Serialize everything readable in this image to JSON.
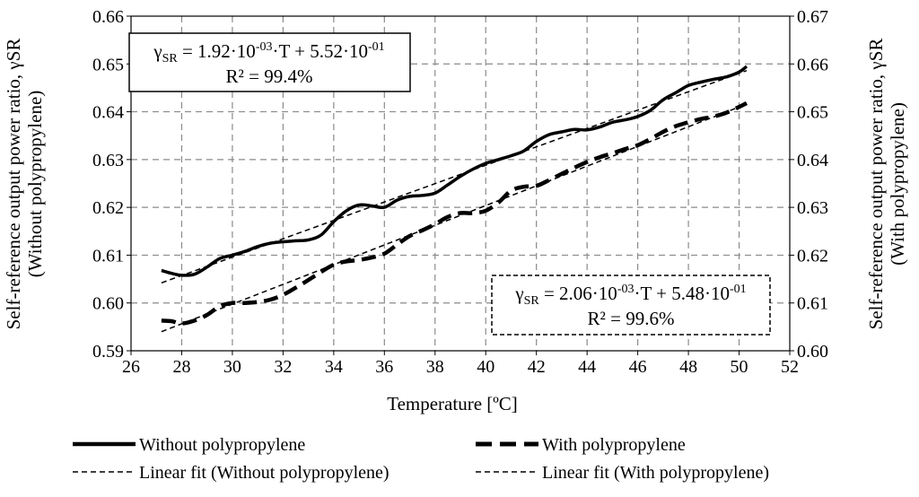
{
  "chart_data": {
    "type": "line",
    "xlabel": "Temperature [ºC]",
    "ylabel_left": "Self-reference output power ratio, γSR",
    "ylabel_left_sub": "(Without polypropylene)",
    "ylabel_right": "Self-reference output power ratio, γSR",
    "ylabel_right_sub": "(With polypropylene)",
    "xlim": [
      26,
      52
    ],
    "ylim_left": [
      0.59,
      0.66
    ],
    "ylim_right": [
      0.6,
      0.67
    ],
    "x_ticks": [
      "26",
      "28",
      "30",
      "32",
      "34",
      "36",
      "38",
      "40",
      "42",
      "44",
      "46",
      "48",
      "50",
      "52"
    ],
    "y_left_ticks": [
      "0.59",
      "0.60",
      "0.61",
      "0.62",
      "0.63",
      "0.64",
      "0.65",
      "0.66"
    ],
    "y_right_ticks": [
      "0.60",
      "0.61",
      "0.62",
      "0.63",
      "0.64",
      "0.65",
      "0.66",
      "0.67"
    ],
    "grid": true,
    "legend_position": "bottom",
    "series": [
      {
        "name": "Without polypropylene",
        "axis": "left",
        "style": "solid",
        "x": [
          27.2,
          27.6,
          28.0,
          28.5,
          29.0,
          29.5,
          30.0,
          30.5,
          31.0,
          31.5,
          32.0,
          32.5,
          33.0,
          33.5,
          34.0,
          34.5,
          35.0,
          35.5,
          36.0,
          36.5,
          37.0,
          37.5,
          38.0,
          38.5,
          39.0,
          39.5,
          40.0,
          40.5,
          41.0,
          41.5,
          42.0,
          42.5,
          43.0,
          43.5,
          44.0,
          44.5,
          45.0,
          45.5,
          46.0,
          46.5,
          47.0,
          47.5,
          48.0,
          48.5,
          49.0,
          49.5,
          50.0,
          50.3
        ],
        "y": [
          0.6068,
          0.6062,
          0.6058,
          0.606,
          0.6075,
          0.6093,
          0.61,
          0.6108,
          0.6118,
          0.6125,
          0.6128,
          0.613,
          0.6132,
          0.6142,
          0.617,
          0.6193,
          0.6205,
          0.6203,
          0.62,
          0.6215,
          0.6223,
          0.6225,
          0.623,
          0.6247,
          0.6265,
          0.628,
          0.6292,
          0.63,
          0.6308,
          0.6318,
          0.6338,
          0.6352,
          0.6358,
          0.6363,
          0.6362,
          0.6368,
          0.6378,
          0.6383,
          0.639,
          0.6403,
          0.6425,
          0.644,
          0.6455,
          0.6462,
          0.6468,
          0.6473,
          0.6483,
          0.6495
        ]
      },
      {
        "name": "With polypropylene",
        "axis": "right",
        "style": "dashed-thick",
        "x": [
          27.2,
          27.6,
          28.0,
          28.5,
          29.0,
          29.5,
          30.0,
          30.5,
          31.0,
          31.5,
          32.0,
          32.5,
          33.0,
          33.5,
          34.0,
          34.5,
          35.0,
          35.5,
          36.0,
          36.5,
          37.0,
          37.5,
          38.0,
          38.5,
          39.0,
          39.5,
          40.0,
          40.5,
          41.0,
          41.5,
          42.0,
          42.5,
          43.0,
          43.5,
          44.0,
          44.5,
          45.0,
          45.5,
          46.0,
          46.5,
          47.0,
          47.5,
          48.0,
          48.5,
          49.0,
          49.5,
          50.0,
          50.3
        ],
        "y": [
          0.6063,
          0.6062,
          0.6057,
          0.6063,
          0.6075,
          0.6093,
          0.61,
          0.61,
          0.6102,
          0.6107,
          0.6117,
          0.6132,
          0.6148,
          0.6165,
          0.618,
          0.6187,
          0.619,
          0.6195,
          0.6203,
          0.6222,
          0.624,
          0.6252,
          0.6265,
          0.628,
          0.6288,
          0.6288,
          0.6293,
          0.631,
          0.6335,
          0.6343,
          0.6345,
          0.6357,
          0.637,
          0.6383,
          0.6395,
          0.6405,
          0.6413,
          0.6422,
          0.643,
          0.6443,
          0.6458,
          0.647,
          0.6478,
          0.6485,
          0.649,
          0.6498,
          0.651,
          0.6518
        ]
      },
      {
        "name": "Linear fit (Without polypropylene)",
        "axis": "left",
        "style": "dashed-thin",
        "x": [
          27.2,
          50.3
        ],
        "y": [
          0.6042,
          0.6486
        ]
      },
      {
        "name": "Linear fit (With polypropylene)",
        "axis": "right",
        "style": "dashed-thin",
        "x": [
          27.2,
          50.3
        ],
        "y": [
          0.604,
          0.6516
        ]
      }
    ],
    "annotations": {
      "eq_without": {
        "line1_gamma": "γ",
        "line1_sub": "SR",
        "line1_mid": " = 1.92·10",
        "line1_exp1": "-03",
        "line1_mid2": "·T + 5.52·10",
        "line1_exp2": "-01",
        "line2": "R² = 99.4%"
      },
      "eq_with": {
        "line1_gamma": "γ",
        "line1_sub": "SR",
        "line1_mid": " = 2.06·10",
        "line1_exp1": "-03",
        "line1_mid2": "·T + 5.48·10",
        "line1_exp2": "-01",
        "line2": "R² = 99.6%"
      }
    }
  },
  "legend": {
    "item1": "Without polypropylene",
    "item2": "With polypropylene",
    "item3": "Linear fit (Without polypropylene)",
    "item4": "Linear fit (With polypropylene)"
  }
}
